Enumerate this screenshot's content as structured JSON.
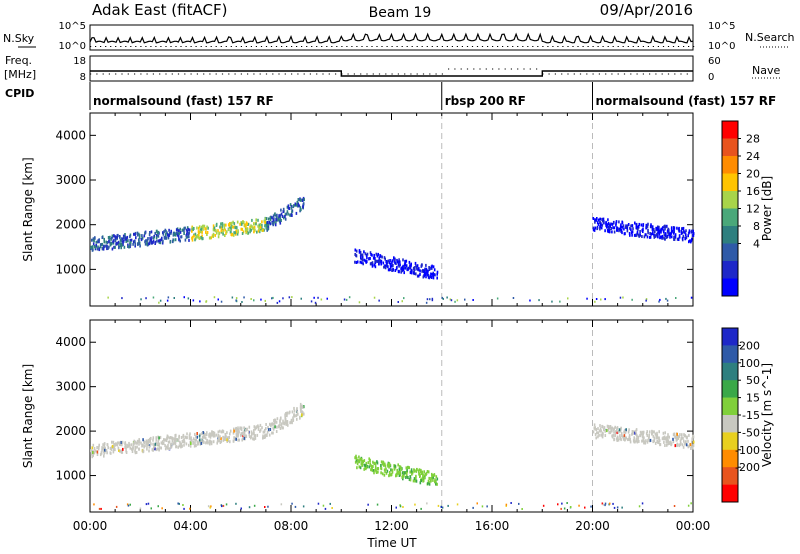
{
  "header": {
    "station": "Adak East (fitACF)",
    "beam": "Beam 19",
    "date": "09/Apr/2016"
  },
  "top_panels": {
    "nsky_label": "N.Sky",
    "nsky_ticks": [
      "10^5",
      "10^0"
    ],
    "nsearch_label": "N.Search",
    "nsearch_ticks": [
      "10^5",
      "10^0"
    ],
    "freq_label": "Freq.",
    "freq_unit": "[MHz]",
    "freq_ticks": [
      "18",
      "8"
    ],
    "nave_label": "Nave",
    "nave_ticks": [
      "60",
      "0"
    ],
    "cpid_label": "CPID"
  },
  "cpid_segments": [
    {
      "label": "normalsound (fast) 157 RF",
      "start_hour": 0
    },
    {
      "label": "rbsp 200 RF",
      "start_hour": 14
    },
    {
      "label": "normalsound (fast) 157 RF",
      "start_hour": 20
    }
  ],
  "x_axis": {
    "label": "Time UT",
    "ticks": [
      "00:00",
      "04:00",
      "08:00",
      "12:00",
      "16:00",
      "20:00",
      "00:00"
    ],
    "range_hours": [
      0,
      24
    ],
    "dashed_lines_hours": [
      14,
      20
    ]
  },
  "power_panel": {
    "ylabel": "Slant Range [km]",
    "yticks": [
      "4000",
      "3000",
      "2000",
      "1000"
    ],
    "colorbar_label": "Power [dB]",
    "colorbar_ticks": [
      "28",
      "24",
      "20",
      "16",
      "12",
      "8",
      "4"
    ],
    "colors": [
      "#ff0000",
      "#e8541e",
      "#ff8c00",
      "#ffc400",
      "#a8d44a",
      "#4aa87a",
      "#2e7f7f",
      "#2f5aa8",
      "#1e28c8",
      "#0000ff"
    ]
  },
  "velocity_panel": {
    "ylabel": "Slant Range [km]",
    "yticks": [
      "4000",
      "3000",
      "2000",
      "1000"
    ],
    "colorbar_label": "Velocity [m s^-1]",
    "colorbar_ticks": [
      "200",
      "100",
      "50",
      "15",
      "-15",
      "-50",
      "-100",
      "-200"
    ],
    "colors": [
      "#1e28c8",
      "#2f5aa8",
      "#2e7f7f",
      "#3aa848",
      "#80d03a",
      "#c8c8c0",
      "#e8d020",
      "#ff8c00",
      "#e8541e",
      "#ff0000"
    ]
  },
  "chart_data": {
    "type": "heatmap",
    "x_range_hours": [
      0,
      24
    ],
    "y_range_km": [
      180,
      4500
    ],
    "frequency_mhz": [
      {
        "start_hour": 0,
        "end_hour": 10,
        "value": 12
      },
      {
        "start_hour": 10,
        "end_hour": 18,
        "value": 10
      },
      {
        "start_hour": 18,
        "end_hour": 24,
        "value": 12
      }
    ],
    "scatter_regions": [
      {
        "start_hour": 0.0,
        "end_hour": 4.0,
        "range_km_start": 1550,
        "range_km_end": 1800,
        "power_db": 10,
        "velocity_ms": -15
      },
      {
        "start_hour": 4.0,
        "end_hour": 7.0,
        "range_km_start": 1800,
        "range_km_end": 2000,
        "power_db": 14,
        "velocity_ms": -15
      },
      {
        "start_hour": 7.0,
        "end_hour": 8.5,
        "range_km_start": 2000,
        "range_km_end": 2500,
        "power_db": 12,
        "velocity_ms": -15
      },
      {
        "start_hour": 10.5,
        "end_hour": 13.8,
        "range_km_start": 1300,
        "range_km_end": 900,
        "power_db": 8,
        "velocity_ms": 15
      },
      {
        "start_hour": 20.0,
        "end_hour": 24.0,
        "range_km_start": 2000,
        "range_km_end": 1750,
        "power_db": 6,
        "velocity_ms": -15
      }
    ]
  }
}
